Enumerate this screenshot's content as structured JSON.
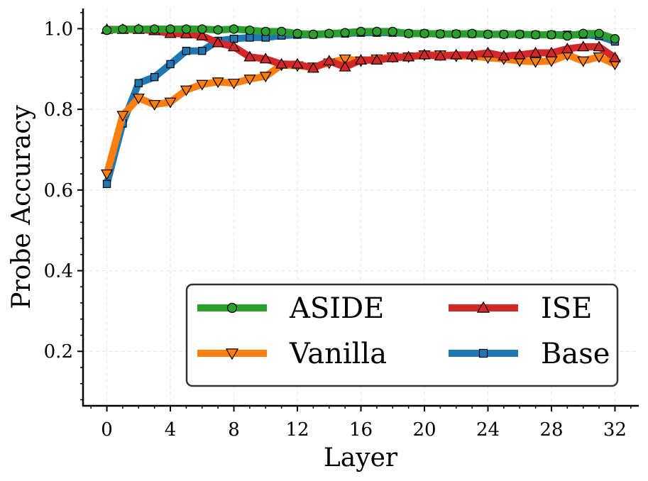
{
  "chart_data": {
    "type": "line",
    "title": "",
    "xlabel": "Layer",
    "ylabel": "Probe Accuracy",
    "xlim": [
      -1.5,
      33.5
    ],
    "ylim": [
      0.065,
      1.05
    ],
    "xticks": [
      0,
      4,
      8,
      12,
      16,
      20,
      24,
      28,
      32
    ],
    "xtick_labels": [
      "0",
      "4",
      "8",
      "12",
      "16",
      "20",
      "24",
      "28",
      "32"
    ],
    "yticks": [
      0.2,
      0.4,
      0.6,
      0.8,
      1.0
    ],
    "ytick_labels": [
      "0.2",
      "0.4",
      "0.6",
      "0.8",
      "1.0"
    ],
    "grid": true,
    "legend_position": "lower-right",
    "x": [
      0,
      1,
      2,
      3,
      4,
      5,
      6,
      7,
      8,
      9,
      10,
      11,
      12,
      13,
      14,
      15,
      16,
      17,
      18,
      19,
      20,
      21,
      22,
      23,
      24,
      25,
      26,
      27,
      28,
      29,
      30,
      31,
      32
    ],
    "series": [
      {
        "name": "Base",
        "color": "#1f77b4",
        "marker": "square",
        "values": [
          0.615,
          0.765,
          0.865,
          0.88,
          0.912,
          0.945,
          0.945,
          0.97,
          0.975,
          0.978,
          0.978,
          0.983,
          0.985,
          0.985,
          0.987,
          0.988,
          0.99,
          0.99,
          0.99,
          0.988,
          0.988,
          0.987,
          0.987,
          0.987,
          0.986,
          0.986,
          0.986,
          0.985,
          0.985,
          0.985,
          0.985,
          0.982,
          0.968
        ]
      },
      {
        "name": "Vanilla",
        "color": "#ff7f0e",
        "marker": "triangle-down",
        "values": [
          0.64,
          0.785,
          0.828,
          0.812,
          0.818,
          0.848,
          0.862,
          0.868,
          0.865,
          0.875,
          0.882,
          0.91,
          0.908,
          0.905,
          0.915,
          0.925,
          0.92,
          0.925,
          0.93,
          0.93,
          0.935,
          0.935,
          0.932,
          0.932,
          0.928,
          0.925,
          0.92,
          0.918,
          0.92,
          0.935,
          0.92,
          0.93,
          0.912
        ]
      },
      {
        "name": "ISE",
        "color": "#d62728",
        "marker": "triangle-up",
        "values": [
          0.998,
          0.998,
          0.998,
          0.995,
          0.988,
          0.987,
          0.982,
          0.965,
          0.955,
          0.93,
          0.925,
          0.912,
          0.912,
          0.902,
          0.92,
          0.905,
          0.922,
          0.922,
          0.928,
          0.93,
          0.935,
          0.932,
          0.935,
          0.935,
          0.94,
          0.932,
          0.935,
          0.94,
          0.94,
          0.95,
          0.955,
          0.955,
          0.928
        ]
      },
      {
        "name": "ASIDE",
        "color": "#2ca02c",
        "marker": "circle",
        "values": [
          0.996,
          0.999,
          0.999,
          0.999,
          0.999,
          0.999,
          0.999,
          0.997,
          0.999,
          0.996,
          0.993,
          0.993,
          0.988,
          0.986,
          0.988,
          0.99,
          0.993,
          0.993,
          0.993,
          0.988,
          0.988,
          0.987,
          0.987,
          0.988,
          0.986,
          0.986,
          0.986,
          0.985,
          0.985,
          0.982,
          0.988,
          0.988,
          0.975
        ]
      }
    ],
    "legend": {
      "entries": [
        {
          "name": "ASIDE",
          "color": "#2ca02c",
          "marker": "circle"
        },
        {
          "name": "ISE",
          "color": "#d62728",
          "marker": "triangle-up"
        },
        {
          "name": "Vanilla",
          "color": "#ff7f0e",
          "marker": "triangle-down"
        },
        {
          "name": "Base",
          "color": "#1f77b4",
          "marker": "square"
        }
      ]
    }
  }
}
